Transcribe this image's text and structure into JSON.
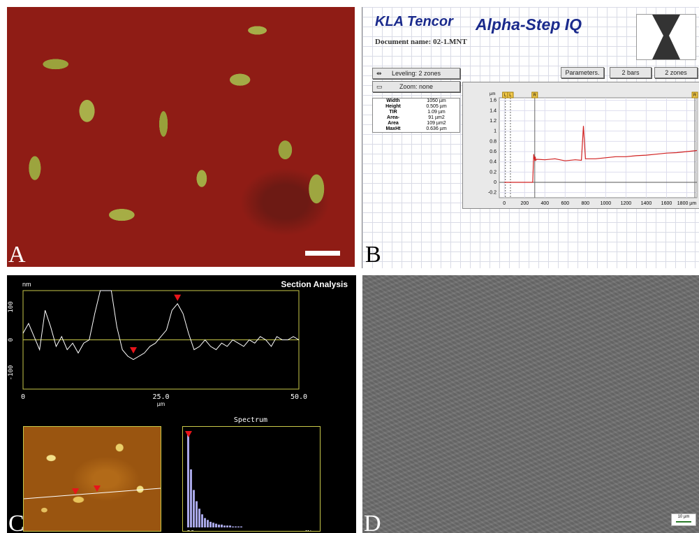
{
  "figure": {
    "panel_a": {
      "label": "A"
    },
    "panel_b": {
      "label": "B",
      "logo": "KLA Tencor",
      "app_title": "Alpha-Step IQ",
      "doc_name_label": "Document name:",
      "doc_name_value": "02-1.MNT",
      "leveling_button": "Leveling: 2 zones",
      "zoom_button": "Zoom: none",
      "parameters_button": "Parameters.",
      "bars_button": "2 bars",
      "zones_button": "2 zones",
      "stats": [
        {
          "key": "Width",
          "value": "1050 µm"
        },
        {
          "key": "Height",
          "value": "0.505 µm"
        },
        {
          "key": "TIR",
          "value": "1.09 µm"
        },
        {
          "key": "Area-",
          "value": "91 µm2"
        },
        {
          "key": "Area",
          "value": "109 µm2"
        },
        {
          "key": "MaxHt",
          "value": "0.636 µm"
        }
      ],
      "cursor_labels": [
        "L",
        "L",
        "R",
        "R"
      ]
    },
    "panel_c": {
      "label": "C",
      "title": "Section Analysis",
      "spectrum_title": "Spectrum",
      "spectrum_x_left": "DC",
      "spectrum_x_right": "Min"
    },
    "panel_d": {
      "label": "D",
      "scale_text": "10 µm"
    }
  },
  "chart_data": [
    {
      "type": "line",
      "panel": "B",
      "xlabel": "µm",
      "ylabel": "µm",
      "x_ticks": [
        "0",
        "200",
        "400",
        "600",
        "800",
        "1000",
        "1200",
        "1400",
        "1600",
        "1800 µm"
      ],
      "y_ticks": [
        "1.6",
        "1.4",
        "1.2",
        "1",
        "0.8",
        "0.6",
        "0.4",
        "0.2",
        "0",
        "-0.2"
      ],
      "xlim": [
        -50,
        1900
      ],
      "ylim": [
        -0.3,
        1.65
      ],
      "series": [
        {
          "x": [
            0,
            150,
            280,
            290,
            300,
            305,
            310,
            320,
            400,
            500,
            600,
            700,
            760,
            780,
            800,
            900,
            1000,
            1100,
            1200,
            1300,
            1400,
            1500,
            1600,
            1700,
            1800,
            1900
          ],
          "values": [
            0,
            0,
            0,
            0.55,
            0.42,
            0.5,
            0.43,
            0.45,
            0.44,
            0.46,
            0.42,
            0.44,
            0.43,
            1.1,
            0.46,
            0.46,
            0.48,
            0.5,
            0.5,
            0.52,
            0.53,
            0.55,
            0.57,
            0.58,
            0.6,
            0.62
          ]
        }
      ]
    },
    {
      "type": "line",
      "panel": "C",
      "ylabel": "nm",
      "xlabel": "µm",
      "x_ticks": [
        "0",
        "25.0",
        "50.0"
      ],
      "y_ticks": [
        "100",
        "0",
        "-100"
      ],
      "xlim": [
        0,
        50
      ],
      "ylim": [
        -150,
        150
      ],
      "series": [
        {
          "x": [
            0,
            1,
            2,
            3,
            4,
            5,
            6,
            7,
            8,
            9,
            10,
            11,
            12,
            13,
            14,
            15,
            16,
            17,
            18,
            19,
            20,
            21,
            22,
            23,
            24,
            25,
            26,
            27,
            28,
            29,
            30,
            31,
            32,
            33,
            34,
            35,
            36,
            37,
            38,
            39,
            40,
            41,
            42,
            43,
            44,
            45,
            46,
            47,
            48,
            49,
            50
          ],
          "values": [
            20,
            50,
            10,
            -30,
            90,
            40,
            -20,
            10,
            -30,
            -10,
            -40,
            -10,
            0,
            80,
            150,
            150,
            150,
            40,
            -30,
            -50,
            -60,
            -50,
            -40,
            -20,
            -10,
            10,
            30,
            90,
            110,
            80,
            20,
            -30,
            -20,
            0,
            -20,
            -30,
            -10,
            -20,
            0,
            -10,
            -20,
            0,
            -10,
            10,
            0,
            -20,
            10,
            0,
            0,
            10,
            0
          ]
        }
      ]
    },
    {
      "type": "bar",
      "panel": "C-spectrum",
      "xlabel": "",
      "ylabel": "",
      "categories": [
        "DC",
        "",
        "",
        "",
        "",
        "",
        "",
        "",
        "",
        "",
        "",
        "",
        "",
        "",
        "",
        "",
        "",
        "",
        "",
        "Min"
      ],
      "values": [
        100,
        62,
        40,
        28,
        20,
        14,
        10,
        8,
        6,
        5,
        4,
        3,
        3,
        2,
        2,
        2,
        1,
        1,
        1,
        1
      ]
    }
  ]
}
